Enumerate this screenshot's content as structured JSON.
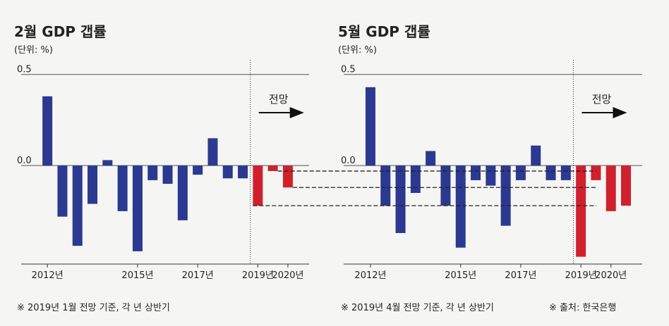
{
  "chart_data": [
    {
      "type": "bar",
      "title": "2월 GDP 갭률",
      "subtitle": "(단위: %)",
      "categories": [
        "2012년",
        null,
        null,
        null,
        null,
        null,
        "2015년",
        null,
        null,
        null,
        "2017년",
        null,
        null,
        null,
        "2019년",
        null,
        "2020년"
      ],
      "values": [
        0.38,
        -0.28,
        -0.44,
        -0.21,
        0.03,
        -0.25,
        -0.47,
        -0.08,
        -0.1,
        -0.3,
        -0.05,
        0.15,
        -0.07,
        -0.07,
        -0.22,
        -0.03,
        -0.12
      ],
      "colors": [
        "#2b3990",
        "#2b3990",
        "#2b3990",
        "#2b3990",
        "#2b3990",
        "#2b3990",
        "#2b3990",
        "#2b3990",
        "#2b3990",
        "#2b3990",
        "#2b3990",
        "#2b3990",
        "#2b3990",
        "#2b3990",
        "#d0202e",
        "#d0202e",
        "#d0202e"
      ],
      "ylim": [
        -0.54,
        0.58
      ],
      "yticks": [
        {
          "value": 0,
          "label": "0.0"
        },
        0.5
      ],
      "grid": true,
      "annotation": "전망",
      "note": "※ 2019년 1월 전망 기준, 각 년 상반기"
    },
    {
      "type": "bar",
      "title": "5월 GDP 갭률",
      "subtitle": "(단위: %)",
      "categories": [
        "2012년",
        null,
        null,
        null,
        null,
        null,
        "2015년",
        null,
        null,
        null,
        "2017년",
        null,
        null,
        null,
        "2019년",
        null,
        "2020년",
        null
      ],
      "values": [
        0.43,
        -0.22,
        -0.37,
        -0.15,
        0.08,
        -0.22,
        -0.45,
        -0.08,
        -0.11,
        -0.33,
        -0.08,
        0.11,
        -0.08,
        -0.08,
        -0.5,
        -0.08,
        -0.25,
        -0.22
      ],
      "colors": [
        "#2b3990",
        "#2b3990",
        "#2b3990",
        "#2b3990",
        "#2b3990",
        "#2b3990",
        "#2b3990",
        "#2b3990",
        "#2b3990",
        "#2b3990",
        "#2b3990",
        "#2b3990",
        "#2b3990",
        "#2b3990",
        "#d0202e",
        "#d0202e",
        "#d0202e",
        "#d0202e"
      ],
      "ylim": [
        -0.54,
        0.58
      ],
      "yticks": [
        {
          "value": 0,
          "label": "0.0"
        },
        0.5
      ],
      "grid": true,
      "annotation": "전망",
      "note": "※ 2019년 4월 전망 기준, 각 년 상반기",
      "source": "※ 출처: 한국은행"
    }
  ]
}
